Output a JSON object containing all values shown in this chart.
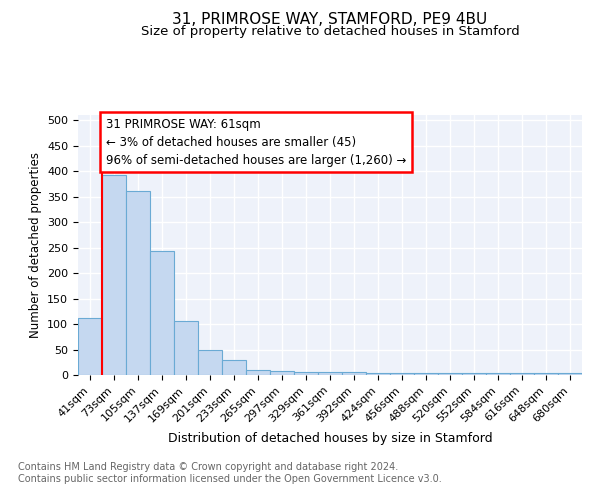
{
  "title": "31, PRIMROSE WAY, STAMFORD, PE9 4BU",
  "subtitle": "Size of property relative to detached houses in Stamford",
  "xlabel": "Distribution of detached houses by size in Stamford",
  "ylabel": "Number of detached properties",
  "categories": [
    "41sqm",
    "73sqm",
    "105sqm",
    "137sqm",
    "169sqm",
    "201sqm",
    "233sqm",
    "265sqm",
    "297sqm",
    "329sqm",
    "361sqm",
    "392sqm",
    "424sqm",
    "456sqm",
    "488sqm",
    "520sqm",
    "552sqm",
    "584sqm",
    "616sqm",
    "648sqm",
    "680sqm"
  ],
  "values": [
    112,
    393,
    360,
    243,
    105,
    50,
    30,
    10,
    7,
    6,
    6,
    6,
    4,
    4,
    4,
    4,
    4,
    4,
    4,
    4,
    4
  ],
  "bar_color": "#c5d8f0",
  "bar_edge_color": "#6aaad4",
  "red_line_x": 0.5,
  "annotation_line1": "31 PRIMROSE WAY: 61sqm",
  "annotation_line2": "← 3% of detached houses are smaller (45)",
  "annotation_line3": "96% of semi-detached houses are larger (1,260) →",
  "annotation_box_color": "white",
  "annotation_box_edge": "red",
  "ylim": [
    0,
    510
  ],
  "yticks": [
    0,
    50,
    100,
    150,
    200,
    250,
    300,
    350,
    400,
    450,
    500
  ],
  "bg_color": "#eef2fa",
  "grid_color": "white",
  "footer_text": "Contains HM Land Registry data © Crown copyright and database right 2024.\nContains public sector information licensed under the Open Government Licence v3.0.",
  "title_fontsize": 11,
  "subtitle_fontsize": 9.5,
  "xlabel_fontsize": 9,
  "ylabel_fontsize": 8.5,
  "tick_fontsize": 8,
  "footer_fontsize": 7,
  "annotation_fontsize": 8.5
}
